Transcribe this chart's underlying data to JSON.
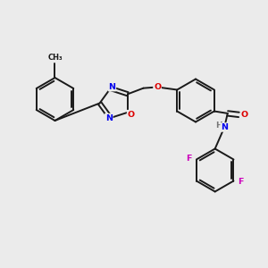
{
  "background_color": "#ebebeb",
  "bond_color": "#1a1a1a",
  "atom_colors": {
    "N": "#0000ee",
    "O": "#dd0000",
    "F": "#cc00bb",
    "H": "#777777",
    "C": "#1a1a1a"
  },
  "figsize": [
    3.0,
    3.0
  ],
  "dpi": 100
}
